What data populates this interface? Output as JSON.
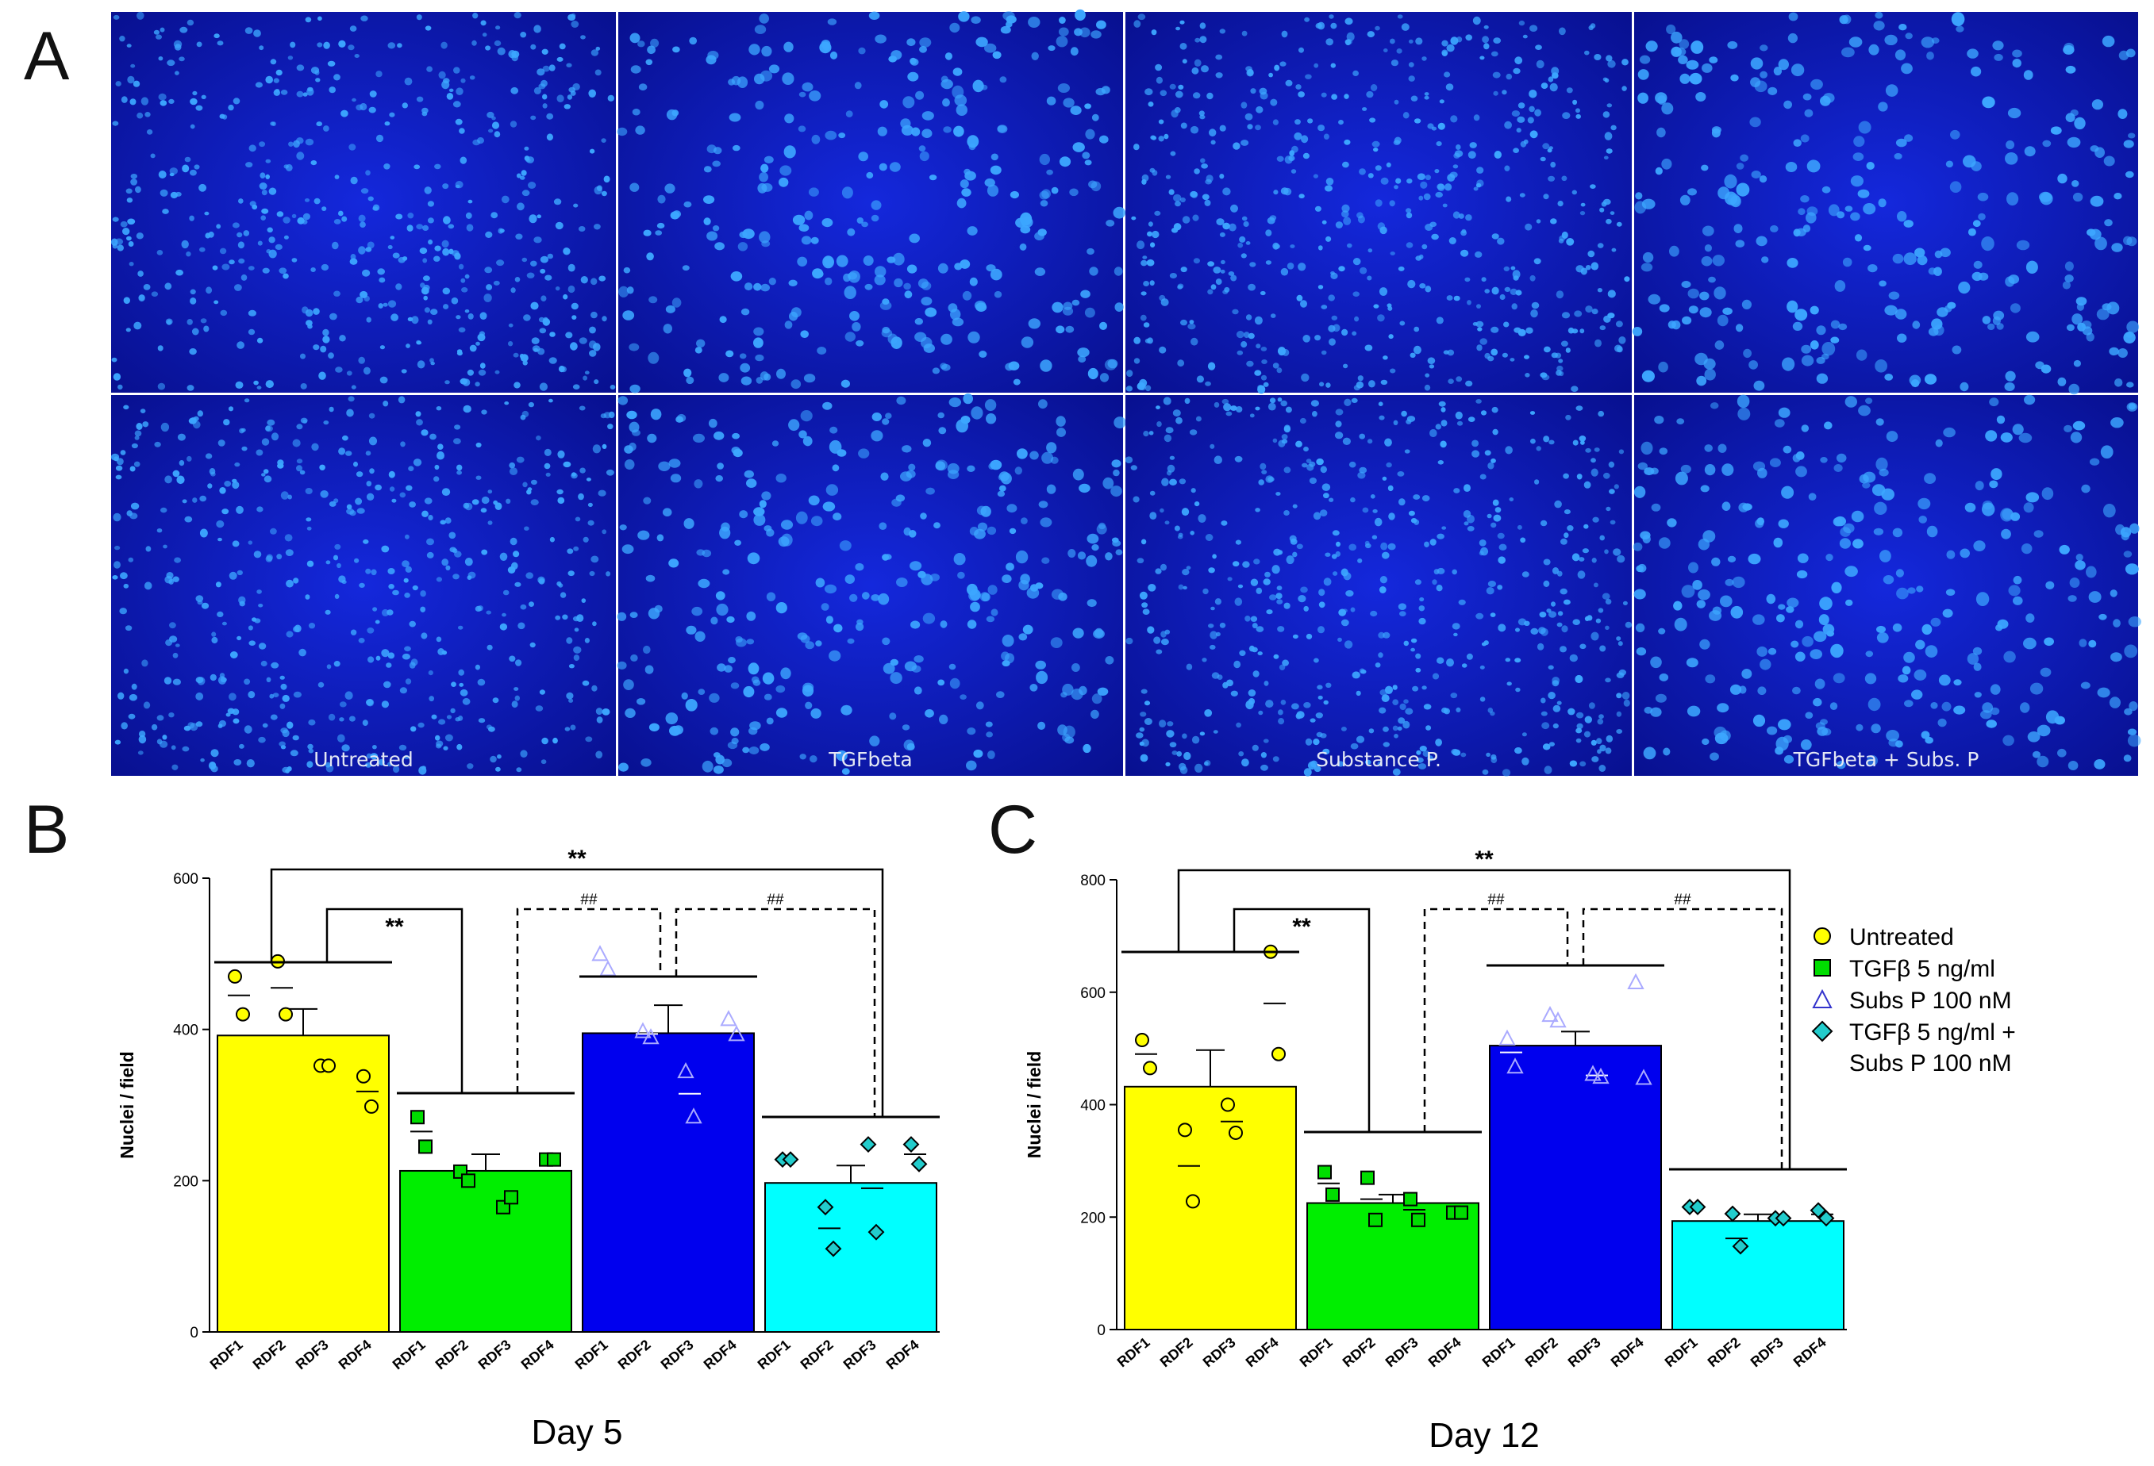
{
  "panels": {
    "a": {
      "letter": "A",
      "captions": [
        "Untreated",
        "TGFbeta",
        "Substance P.",
        "TGFbeta + Subs. P"
      ],
      "background_color": "#0a18c8",
      "nucleus_color": "#3ca6ff"
    },
    "b": {
      "letter": "B"
    },
    "c": {
      "letter": "C"
    }
  },
  "legend": [
    {
      "label": "Untreated",
      "marker": "circle",
      "fill": "#ffff00"
    },
    {
      "label": "TGFβ 5 ng/ml",
      "marker": "square",
      "fill": "#00dd00"
    },
    {
      "label": "Subs P 100 nM",
      "marker": "triangle",
      "fill": "none"
    },
    {
      "label": "TGFβ 5 ng/ml +",
      "label2": "Subs P 100 nM",
      "marker": "diamond",
      "fill": "#22cccc"
    }
  ],
  "chart_data": [
    {
      "type": "bar",
      "xlabel": "Day 5",
      "ylabel": "Nuclei / field",
      "ylim": [
        0,
        600
      ],
      "yticks": [
        0,
        200,
        400,
        600
      ],
      "groups": [
        "Untreated",
        "TGFβ 5 ng/ml",
        "Subs P 100 nM",
        "TGFβ 5 ng/ml + Subs P 100 nM"
      ],
      "bar_colors": [
        "#ffff00",
        "#00ee00",
        "#0000ee",
        "#00ffff"
      ],
      "means": [
        392,
        213,
        395,
        197
      ],
      "sem": [
        35,
        22,
        37,
        23
      ],
      "categories": [
        "RDF1",
        "RDF2",
        "RDF3",
        "RDF4"
      ],
      "replicates": [
        [
          [
            470,
            420
          ],
          [
            490,
            420
          ],
          [
            352,
            352
          ],
          [
            338,
            298
          ]
        ],
        [
          [
            284,
            245
          ],
          [
            212,
            200
          ],
          [
            165,
            178
          ],
          [
            228,
            228
          ]
        ],
        [
          [
            500,
            480
          ],
          [
            398,
            390
          ],
          [
            345,
            285
          ],
          [
            414,
            394
          ]
        ],
        [
          [
            228,
            228
          ],
          [
            165,
            110
          ],
          [
            248,
            132
          ],
          [
            248,
            222
          ]
        ]
      ],
      "replicate_means": [
        [
          445,
          455,
          352,
          318
        ],
        [
          265,
          206,
          171,
          228
        ],
        [
          490,
          394,
          315,
          404
        ],
        [
          228,
          137,
          190,
          235
        ]
      ],
      "significance": [
        {
          "label": "**",
          "between": [
            "Untreated",
            "TGFβ 5 ng/ml + Subs P 100 nM"
          ]
        },
        {
          "label": "**",
          "between": [
            "Untreated",
            "TGFβ 5 ng/ml"
          ]
        },
        {
          "label": "##",
          "between": [
            "TGFβ 5 ng/ml",
            "Subs P 100 nM"
          ]
        },
        {
          "label": "##",
          "between": [
            "Subs P 100 nM",
            "TGFβ 5 ng/ml + Subs P 100 nM"
          ]
        }
      ]
    },
    {
      "type": "bar",
      "xlabel": "Day 12",
      "ylabel": "Nuclei / field",
      "ylim": [
        0,
        800
      ],
      "yticks": [
        0,
        200,
        400,
        600,
        800
      ],
      "groups": [
        "Untreated",
        "TGFβ 5 ng/ml",
        "Subs P 100 nM",
        "TGFβ 5 ng/ml + Subs P 100 nM"
      ],
      "bar_colors": [
        "#ffff00",
        "#00ee00",
        "#0000ee",
        "#00ffff"
      ],
      "means": [
        432,
        225,
        505,
        193
      ],
      "sem": [
        65,
        15,
        25,
        12
      ],
      "categories": [
        "RDF1",
        "RDF2",
        "RDF3",
        "RDF4"
      ],
      "replicates": [
        [
          [
            515,
            465
          ],
          [
            355,
            228
          ],
          [
            400,
            350
          ],
          [
            672,
            490
          ]
        ],
        [
          [
            280,
            240
          ],
          [
            270,
            195
          ],
          [
            232,
            195
          ],
          [
            208,
            208
          ]
        ],
        [
          [
            518,
            468
          ],
          [
            560,
            550
          ],
          [
            455,
            450
          ],
          [
            618,
            448
          ]
        ],
        [
          [
            218,
            218
          ],
          [
            206,
            148
          ],
          [
            198,
            198
          ],
          [
            212,
            198
          ]
        ]
      ],
      "replicate_means": [
        [
          490,
          291,
          370,
          580
        ],
        [
          260,
          232,
          213,
          208
        ],
        [
          493,
          555,
          452,
          533
        ],
        [
          218,
          162,
          198,
          205
        ]
      ],
      "significance": [
        {
          "label": "**",
          "between": [
            "Untreated",
            "TGFβ 5 ng/ml + Subs P 100 nM"
          ]
        },
        {
          "label": "**",
          "between": [
            "Untreated",
            "TGFβ 5 ng/ml"
          ]
        },
        {
          "label": "##",
          "between": [
            "TGFβ 5 ng/ml",
            "Subs P 100 nM"
          ]
        },
        {
          "label": "##",
          "between": [
            "Subs P 100 nM",
            "TGFβ 5 ng/ml + Subs P 100 nM"
          ]
        }
      ]
    }
  ]
}
